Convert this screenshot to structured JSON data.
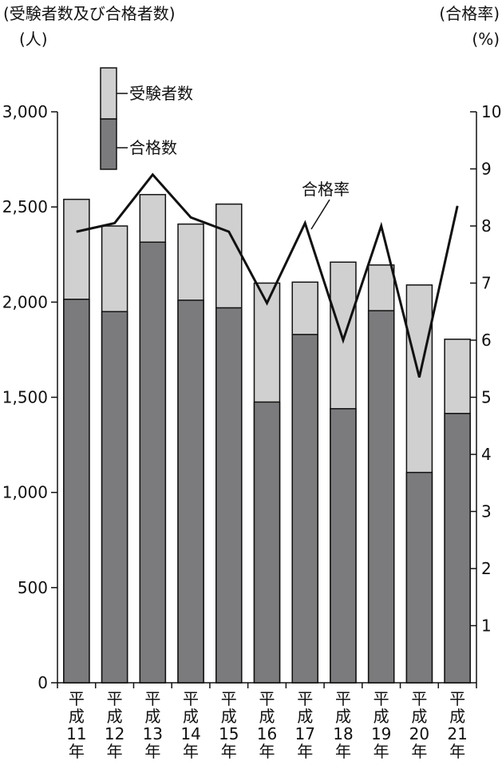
{
  "chart_data": {
    "type": "bar",
    "left_axis_title": "(受験者数及び合格者数)",
    "left_axis_unit": "(人)",
    "right_axis_title": "(合格率)",
    "right_axis_unit": "(%)",
    "categories": [
      [
        "平",
        "成",
        "11",
        "年"
      ],
      [
        "平",
        "成",
        "12",
        "年"
      ],
      [
        "平",
        "成",
        "13",
        "年"
      ],
      [
        "平",
        "成",
        "14",
        "年"
      ],
      [
        "平",
        "成",
        "15",
        "年"
      ],
      [
        "平",
        "成",
        "16",
        "年"
      ],
      [
        "平",
        "成",
        "17",
        "年"
      ],
      [
        "平",
        "成",
        "18",
        "年"
      ],
      [
        "平",
        "成",
        "19",
        "年"
      ],
      [
        "平",
        "成",
        "20",
        "年"
      ],
      [
        "平",
        "成",
        "21",
        "年"
      ]
    ],
    "series": [
      {
        "name": "受験者数",
        "type": "bar",
        "axis": "left",
        "color": "#d0d0d0",
        "values": [
          2540,
          2400,
          2565,
          2410,
          2515,
          2100,
          2105,
          2210,
          2195,
          2090,
          1805
        ]
      },
      {
        "name": "合格数",
        "type": "bar",
        "axis": "left",
        "color": "#7b7b7e",
        "values": [
          2015,
          1950,
          2315,
          2010,
          1970,
          1475,
          1830,
          1440,
          1955,
          1105,
          1415
        ]
      },
      {
        "name": "合格率",
        "type": "line",
        "axis": "right",
        "color": "#111111",
        "values": [
          7.9,
          8.05,
          8.9,
          8.15,
          7.9,
          6.65,
          8.05,
          6.0,
          8.0,
          5.35,
          8.35
        ]
      }
    ],
    "left_axis": {
      "min": 0,
      "max": 3000,
      "ticks": [
        "0",
        "500",
        "1,000",
        "1,500",
        "2,000",
        "2,500",
        "3,000"
      ]
    },
    "right_axis": {
      "min": 0,
      "max": 10,
      "ticks": [
        "1",
        "2",
        "3",
        "4",
        "5",
        "6",
        "7",
        "8",
        "9",
        "10"
      ]
    },
    "line_label": "合格率",
    "grid": false,
    "legend_position": "top-left"
  }
}
